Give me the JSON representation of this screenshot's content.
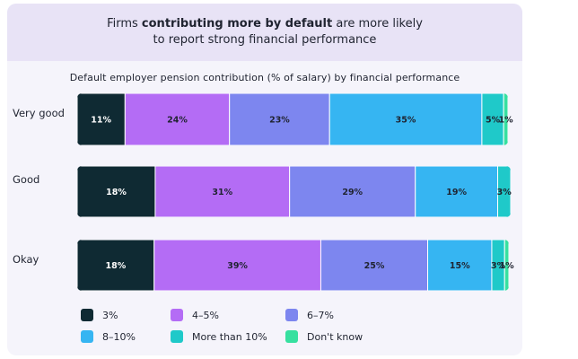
{
  "header": {
    "line1_pre": "Firms ",
    "line1_bold": "contributing more by default",
    "line1_post": " are more likely",
    "line2": "to report strong financial performance"
  },
  "chart_data": {
    "type": "bar",
    "orientation": "horizontal",
    "stacked": true,
    "title": "Default employer pension contribution (% of salary) by financial performance",
    "categories": [
      "Very good",
      "Good",
      "Okay"
    ],
    "series": [
      {
        "name": "3%",
        "color": "#0f2a33",
        "values": [
          11,
          18,
          18
        ],
        "labels": [
          "11%",
          "18%",
          "18%"
        ]
      },
      {
        "name": "4–5%",
        "color": "#b46cf5",
        "values": [
          24,
          31,
          39
        ],
        "labels": [
          "24%",
          "31%",
          "39%"
        ]
      },
      {
        "name": "6–7%",
        "color": "#7d86ef",
        "values": [
          23,
          29,
          25
        ],
        "labels": [
          "23%",
          "29%",
          "25%"
        ]
      },
      {
        "name": "8–10%",
        "color": "#36b5f2",
        "values": [
          35,
          19,
          15
        ],
        "labels": [
          "35%",
          "19%",
          "15%"
        ]
      },
      {
        "name": "More than 10%",
        "color": "#1fc9c9",
        "values": [
          5,
          3,
          3
        ],
        "labels": [
          "5%",
          "3%",
          "3%"
        ]
      },
      {
        "name": "Don't know",
        "color": "#37e0a0",
        "values": [
          1,
          0,
          1
        ],
        "labels": [
          "1%",
          "",
          "1%"
        ]
      }
    ],
    "xlim": [
      0,
      100
    ]
  }
}
